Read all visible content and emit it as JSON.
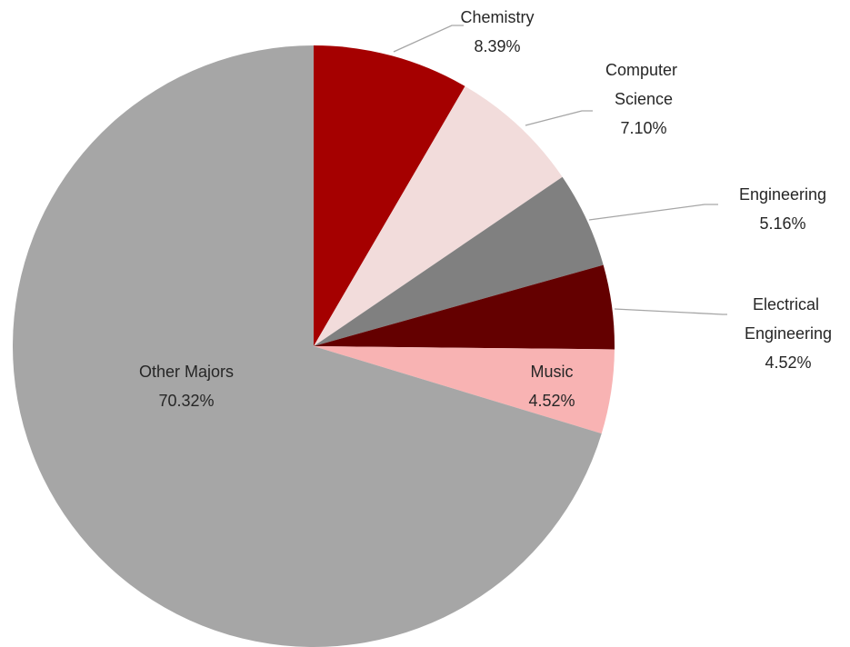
{
  "chart_data": {
    "type": "pie",
    "categories": [
      "Chemistry",
      "Computer Science",
      "Engineering",
      "Electrical Engineering",
      "Music",
      "Other Majors"
    ],
    "values": [
      8.39,
      7.1,
      5.16,
      4.52,
      4.52,
      70.32
    ],
    "value_labels": [
      "8.39%",
      "7.10%",
      "5.16%",
      "4.52%",
      "4.52%",
      "70.32%"
    ],
    "colors": [
      "#a50000",
      "#f2dcdb",
      "#808080",
      "#640000",
      "#f8b3b3",
      "#a6a6a6"
    ]
  }
}
